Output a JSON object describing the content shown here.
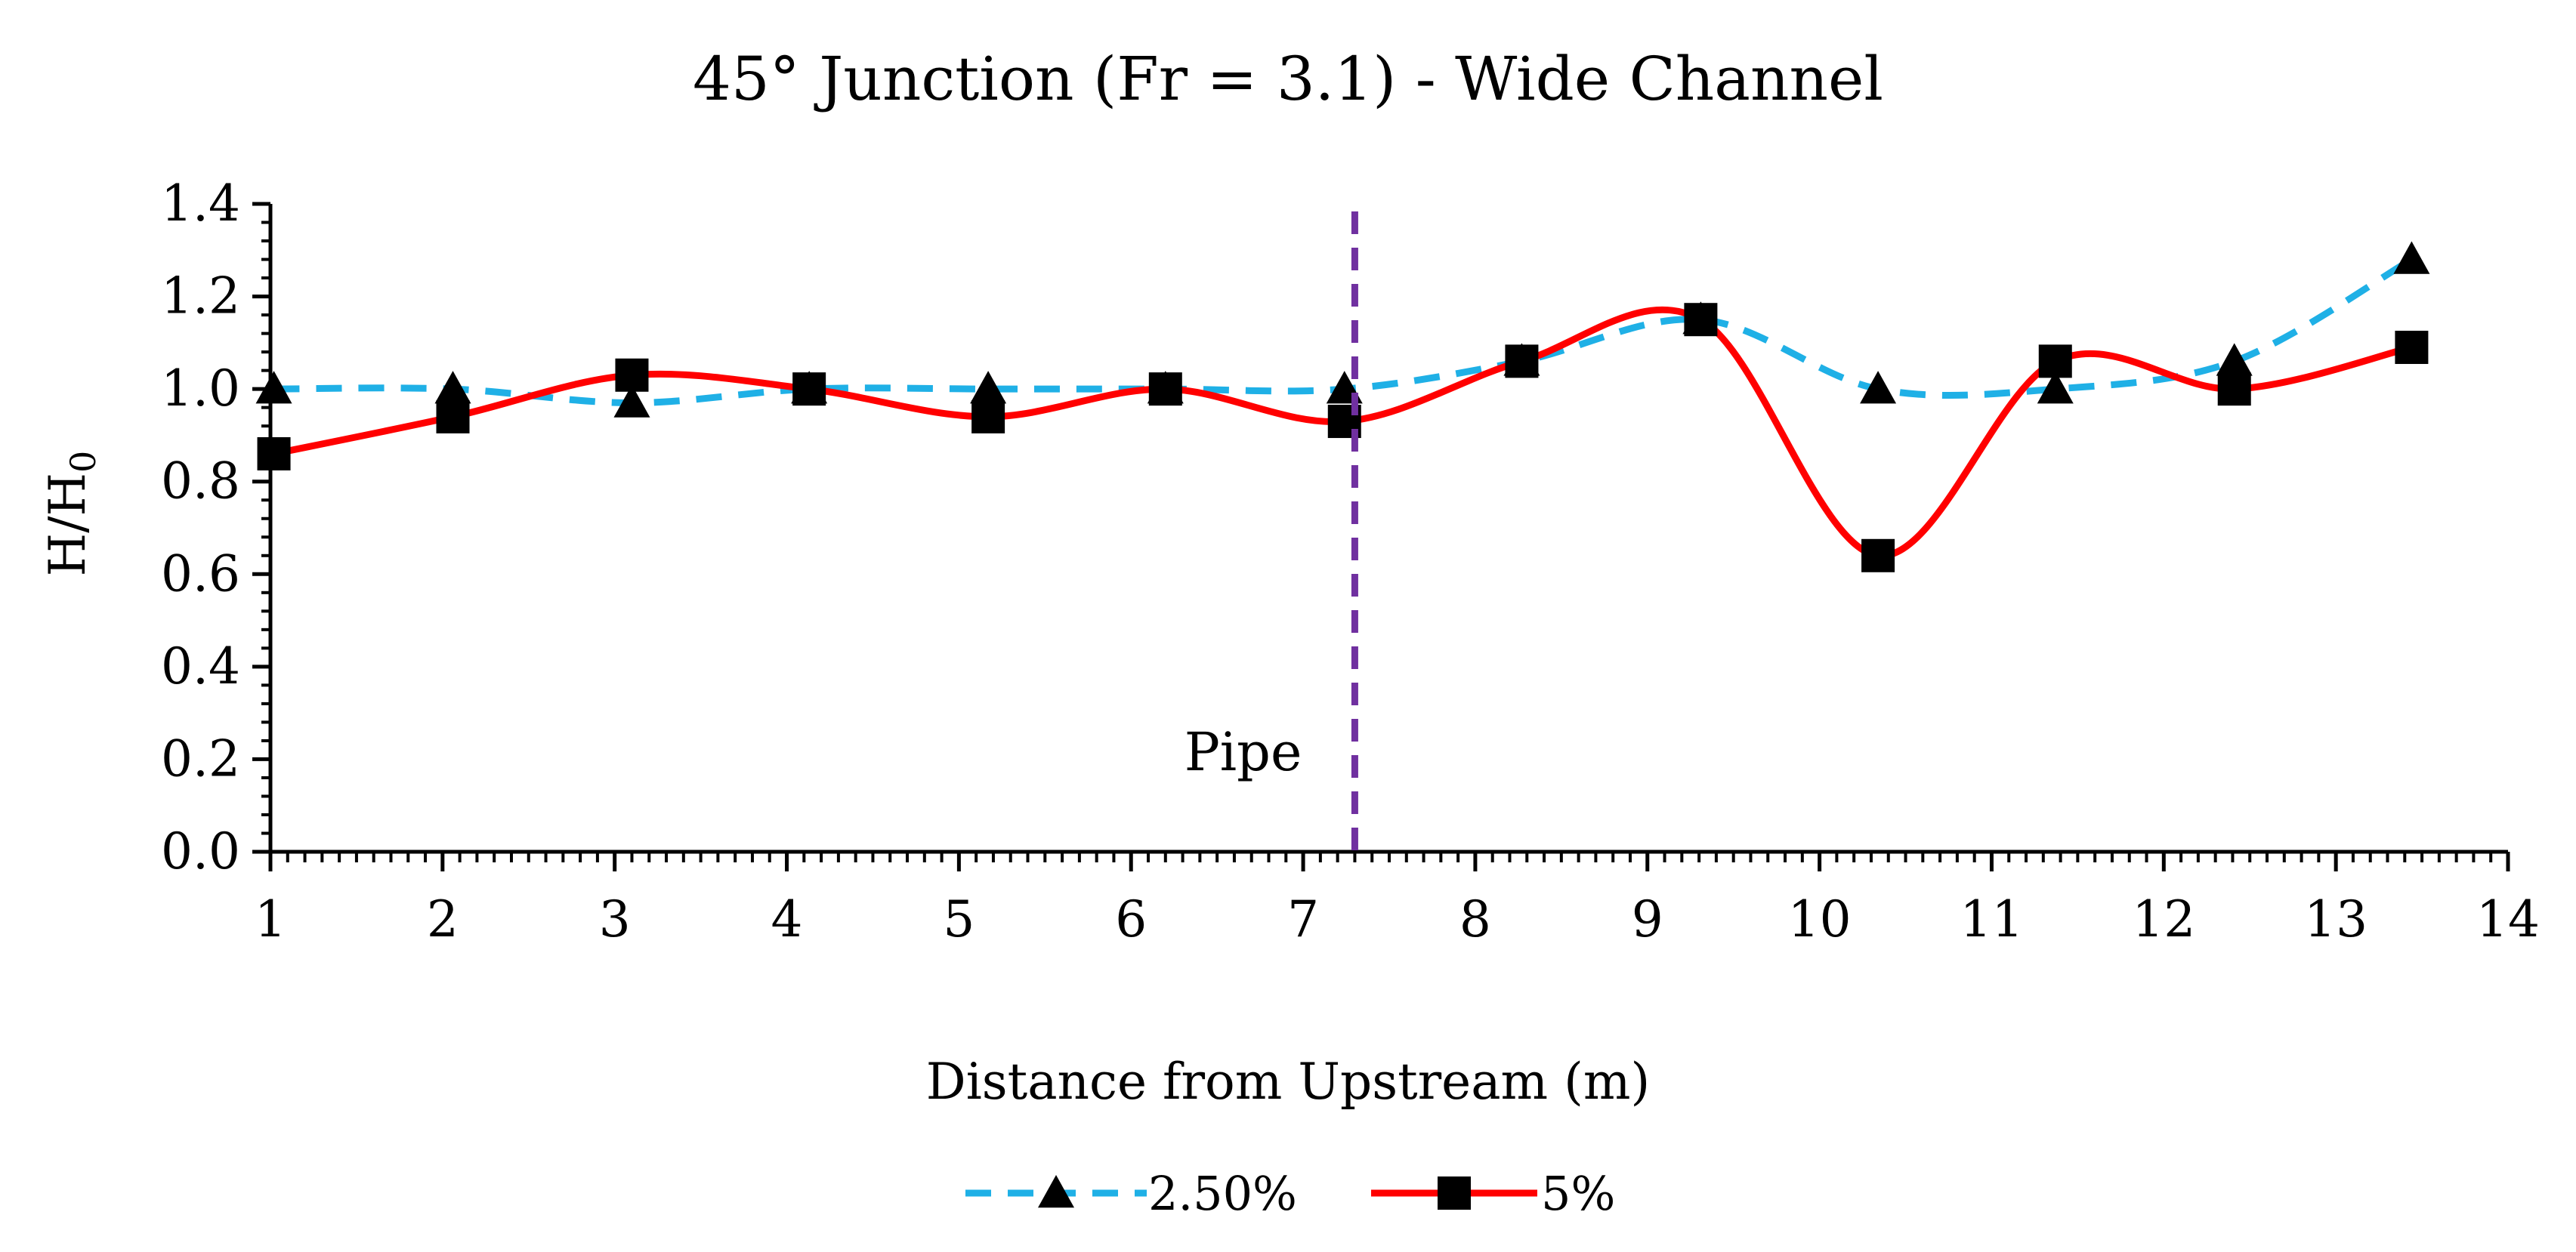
{
  "chart_data": {
    "type": "line",
    "title": "45° Junction (Fr = 3.1) - Wide Channel",
    "xlabel": "Distance from Upstream (m)",
    "ylabel_main": "H/H",
    "ylabel_sub": "0",
    "xlim": [
      1,
      14
    ],
    "ylim": [
      0,
      1.4
    ],
    "x_ticks": [
      "1",
      "2",
      "3",
      "4",
      "5",
      "6",
      "7",
      "8",
      "9",
      "10",
      "11",
      "12",
      "13",
      "14"
    ],
    "y_ticks": [
      "0.0",
      "0.2",
      "0.4",
      "0.6",
      "0.8",
      "1.0",
      "1.2",
      "1.4"
    ],
    "x_tick_values": [
      1,
      2,
      3,
      4,
      5,
      6,
      7,
      8,
      9,
      10,
      11,
      12,
      13,
      14
    ],
    "y_tick_values": [
      0,
      0.2,
      0.4,
      0.6,
      0.8,
      1.0,
      1.2,
      1.4
    ],
    "series": [
      {
        "name": "2.50%",
        "color": "#1fb0e6",
        "style": "dashed",
        "marker": "triangle",
        "x": [
          1.02,
          2.06,
          3.1,
          4.13,
          5.17,
          6.2,
          7.24,
          8.27,
          9.31,
          10.34,
          11.37,
          12.41,
          13.44
        ],
        "values": [
          1.0,
          1.0,
          0.97,
          1.0,
          1.0,
          1.0,
          1.0,
          1.06,
          1.15,
          1.0,
          1.0,
          1.06,
          1.28
        ]
      },
      {
        "name": "5%",
        "color": "#ff0000",
        "style": "solid",
        "marker": "square",
        "x": [
          1.02,
          2.06,
          3.1,
          4.13,
          5.17,
          6.2,
          7.24,
          8.27,
          9.31,
          10.34,
          11.37,
          12.41,
          13.44
        ],
        "values": [
          0.86,
          0.94,
          1.03,
          1.0,
          0.94,
          1.0,
          0.93,
          1.06,
          1.15,
          0.64,
          1.06,
          1.0,
          1.09
        ]
      }
    ],
    "annotations": [
      {
        "label": "Pipe",
        "x": 7.3,
        "color": "#7030a0",
        "style": "dashed-vertical-line"
      }
    ],
    "legend_position": "bottom-center"
  }
}
